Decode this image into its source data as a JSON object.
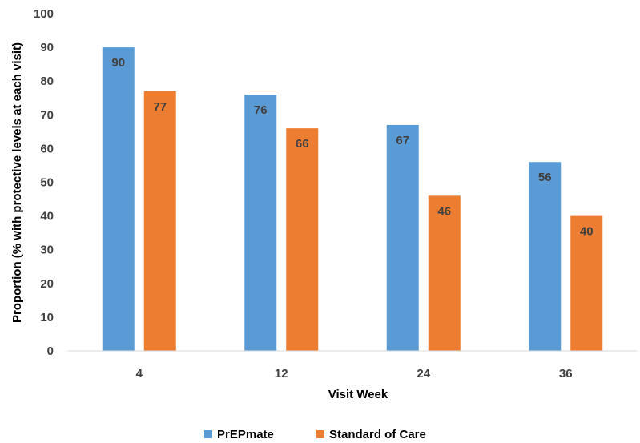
{
  "chart_data": {
    "type": "bar",
    "categories": [
      "4",
      "12",
      "24",
      "36"
    ],
    "series": [
      {
        "name": "PrEPmate",
        "values": [
          90,
          76,
          67,
          56
        ],
        "color": "#5b9bd5"
      },
      {
        "name": "Standard of Care",
        "values": [
          77,
          66,
          46,
          40
        ],
        "color": "#ed7d31"
      }
    ],
    "xlabel": "Visit Week",
    "ylabel": "Proportion (% with protective levels at each visit)",
    "ylim": [
      0,
      100
    ],
    "yticks": [
      0,
      10,
      20,
      30,
      40,
      50,
      60,
      70,
      80,
      90,
      100
    ],
    "grid": false,
    "legend_position": "bottom",
    "data_labels": "inside-top"
  }
}
